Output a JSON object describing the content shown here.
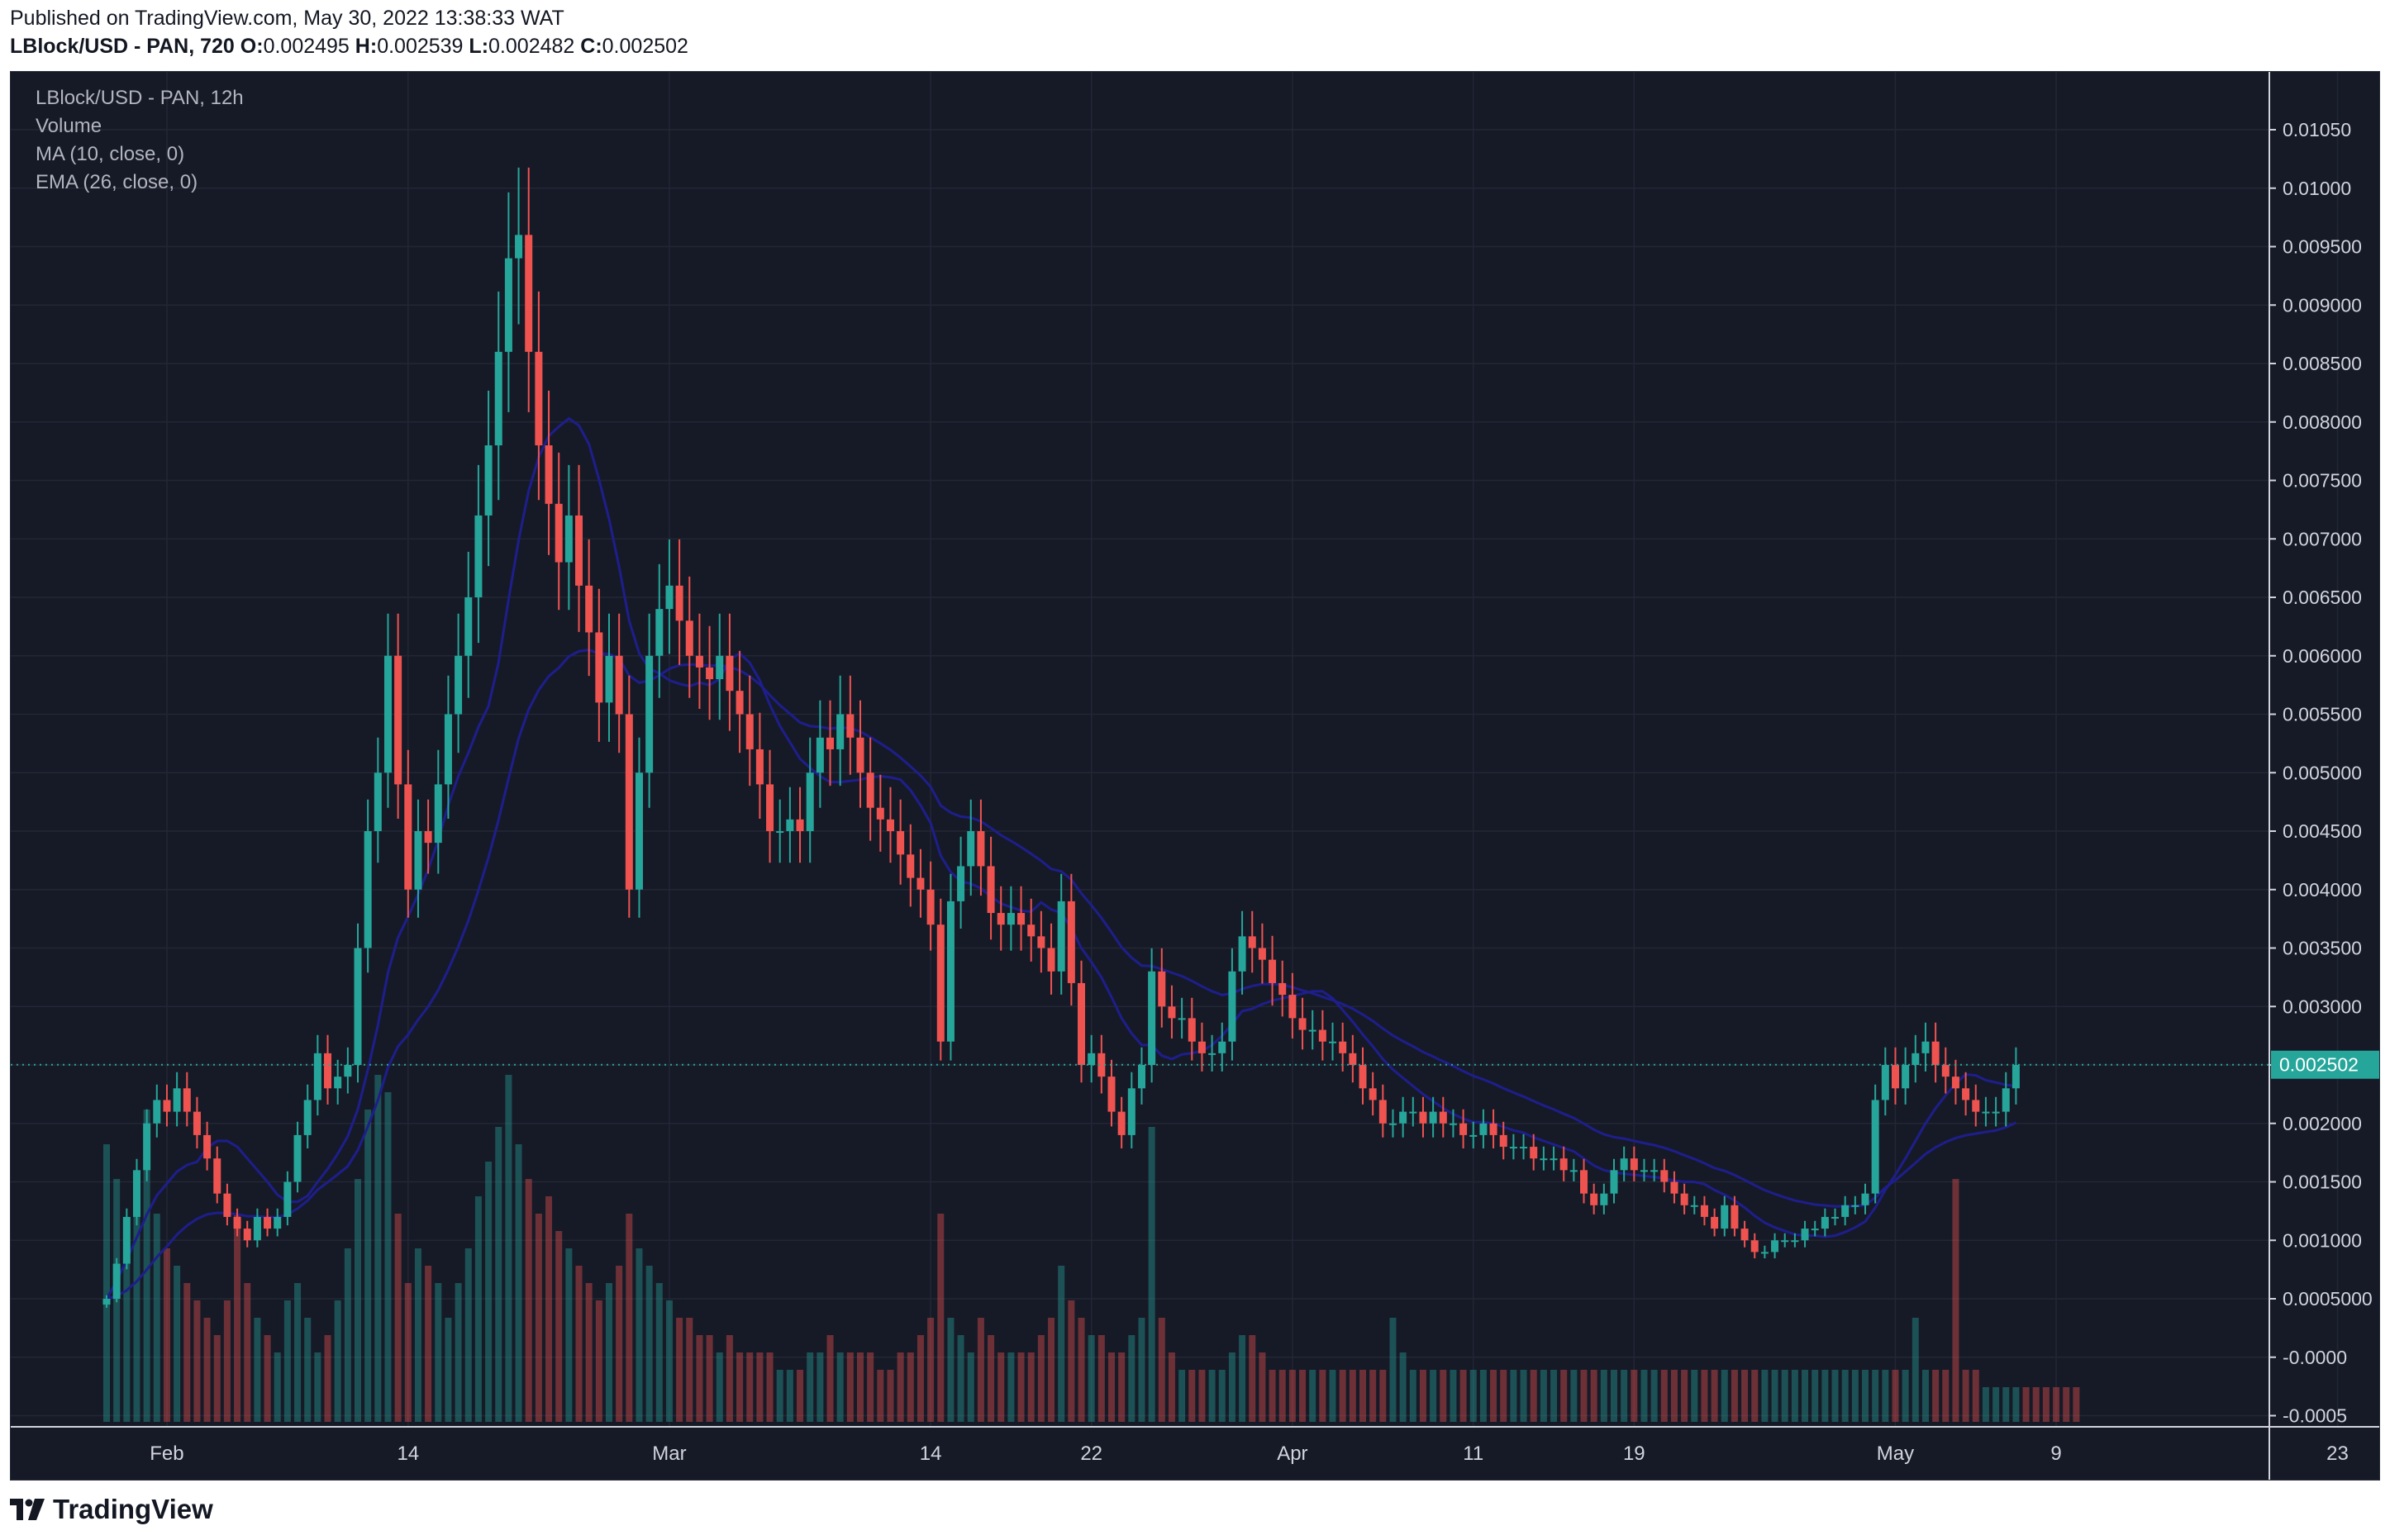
{
  "header": {
    "published": "Published on TradingView.com, May 30, 2022 13:38:33 WAT",
    "symbol_line": "LBlock/USD - PAN, 720",
    "o_label": "O:",
    "o_value": "0.002495",
    "h_label": "H:",
    "h_value": "0.002539",
    "l_label": "L:",
    "l_value": "0.002482",
    "c_label": "C:",
    "c_value": "0.002502"
  },
  "legend": {
    "symbol": "LBlock/USD - PAN, 12h",
    "volume": "Volume",
    "ma": "MA (10, close, 0)",
    "ema": "EMA (26, close, 0)"
  },
  "price_badge": "0.002502",
  "brand": "TradingView",
  "colors": {
    "background": "#161a27",
    "up": "#26a69a",
    "down": "#ef5350",
    "ma_line": "#1e1e8c",
    "badge": "#26a69a"
  },
  "chart_data": {
    "type": "candlestick",
    "title": "LBlock/USD - PAN, 12h",
    "ylim": [
      -0.0005,
      0.0107
    ],
    "y_ticks": [
      "0.01050",
      "0.01000",
      "0.009500",
      "0.009000",
      "0.008500",
      "0.008000",
      "0.007500",
      "0.007000",
      "0.006500",
      "0.006000",
      "0.005500",
      "0.005000",
      "0.004500",
      "0.004000",
      "0.003500",
      "0.003000",
      "0.002500",
      "0.002000",
      "0.001500",
      "0.001000",
      "0.0005000",
      "-0.0000",
      "-0.0005"
    ],
    "y_tick_values": [
      0.0105,
      0.01,
      0.0095,
      0.009,
      0.0085,
      0.008,
      0.0075,
      0.007,
      0.0065,
      0.006,
      0.0055,
      0.005,
      0.0045,
      0.004,
      0.0035,
      0.003,
      0.0025,
      0.002,
      0.0015,
      0.001,
      0.0005,
      0.0,
      -0.0005
    ],
    "x_ticks": [
      {
        "label": "Feb",
        "day": 3
      },
      {
        "label": "14",
        "day": 15
      },
      {
        "label": "Mar",
        "day": 28
      },
      {
        "label": "14",
        "day": 41
      },
      {
        "label": "22",
        "day": 49
      },
      {
        "label": "Apr",
        "day": 59
      },
      {
        "label": "11",
        "day": 68
      },
      {
        "label": "19",
        "day": 76
      },
      {
        "label": "May",
        "day": 89
      },
      {
        "label": "9",
        "day": 97
      },
      {
        "label": "23",
        "day": 111
      }
    ],
    "last_price": 0.002502,
    "closes": [
      0.0005,
      0.0008,
      0.0012,
      0.0016,
      0.002,
      0.0022,
      0.0021,
      0.0023,
      0.0021,
      0.0019,
      0.0017,
      0.0014,
      0.0012,
      0.0011,
      0.001,
      0.0012,
      0.0011,
      0.0012,
      0.0015,
      0.0019,
      0.0022,
      0.0026,
      0.0023,
      0.0024,
      0.0025,
      0.0035,
      0.0045,
      0.005,
      0.006,
      0.0049,
      0.004,
      0.0045,
      0.0044,
      0.0049,
      0.0055,
      0.006,
      0.0065,
      0.0072,
      0.0078,
      0.0086,
      0.0094,
      0.0096,
      0.0086,
      0.0078,
      0.0073,
      0.0068,
      0.0072,
      0.0066,
      0.0062,
      0.0056,
      0.006,
      0.0055,
      0.004,
      0.005,
      0.006,
      0.0064,
      0.0066,
      0.0063,
      0.006,
      0.0059,
      0.0058,
      0.006,
      0.0057,
      0.0055,
      0.0052,
      0.0049,
      0.0045,
      0.0045,
      0.0046,
      0.0045,
      0.005,
      0.0053,
      0.0052,
      0.0055,
      0.0053,
      0.005,
      0.0047,
      0.0046,
      0.0045,
      0.0043,
      0.0041,
      0.004,
      0.0037,
      0.0027,
      0.0039,
      0.0042,
      0.0045,
      0.0042,
      0.0038,
      0.0037,
      0.0038,
      0.0037,
      0.0036,
      0.0035,
      0.0033,
      0.0039,
      0.0032,
      0.0025,
      0.0026,
      0.0024,
      0.0021,
      0.0019,
      0.0023,
      0.0025,
      0.0033,
      0.003,
      0.0029,
      0.0029,
      0.0027,
      0.0026,
      0.0026,
      0.0027,
      0.0033,
      0.0036,
      0.0035,
      0.0034,
      0.0032,
      0.0031,
      0.0029,
      0.0028,
      0.0028,
      0.0027,
      0.0027,
      0.0026,
      0.0025,
      0.0023,
      0.0022,
      0.002,
      0.002,
      0.0021,
      0.0021,
      0.002,
      0.0021,
      0.002,
      0.002,
      0.0019,
      0.0019,
      0.002,
      0.0019,
      0.0018,
      0.0018,
      0.0018,
      0.0017,
      0.0017,
      0.0017,
      0.0016,
      0.0016,
      0.0014,
      0.0013,
      0.0014,
      0.0016,
      0.0017,
      0.0016,
      0.0016,
      0.0016,
      0.0015,
      0.0014,
      0.0013,
      0.0013,
      0.0012,
      0.0011,
      0.0013,
      0.0011,
      0.001,
      0.0009,
      0.0009,
      0.001,
      0.001,
      0.001,
      0.0011,
      0.0011,
      0.0012,
      0.0012,
      0.0013,
      0.0013,
      0.0014,
      0.0022,
      0.0025,
      0.0023,
      0.0025,
      0.0026,
      0.0027,
      0.0025,
      0.0024,
      0.0023,
      0.0022,
      0.0021,
      0.0021,
      0.0021,
      0.0023,
      0.0025
    ],
    "volumes": [
      800,
      700,
      500,
      650,
      900,
      600,
      500,
      450,
      400,
      350,
      300,
      250,
      350,
      600,
      400,
      300,
      250,
      200,
      350,
      400,
      300,
      200,
      250,
      350,
      500,
      700,
      900,
      1000,
      950,
      600,
      400,
      500,
      450,
      400,
      300,
      400,
      500,
      650,
      750,
      850,
      1000,
      800,
      700,
      600,
      650,
      550,
      500,
      450,
      400,
      350,
      400,
      450,
      600,
      500,
      450,
      400,
      350,
      300,
      300,
      250,
      250,
      200,
      250,
      200,
      200,
      200,
      200,
      150,
      150,
      150,
      200,
      200,
      250,
      200,
      200,
      200,
      200,
      150,
      150,
      200,
      200,
      250,
      300,
      600,
      300,
      250,
      200,
      300,
      250,
      200,
      200,
      200,
      200,
      250,
      300,
      450,
      350,
      300,
      250,
      250,
      200,
      200,
      250,
      300,
      850,
      300,
      200,
      150,
      150,
      150,
      150,
      150,
      200,
      250,
      250,
      200,
      150,
      150,
      150,
      150,
      150,
      150,
      150,
      150,
      150,
      150,
      150,
      150,
      300,
      200,
      150,
      150,
      150,
      150,
      150,
      150,
      150,
      150,
      150,
      150,
      150,
      150,
      150,
      150,
      150,
      150,
      150,
      150,
      150,
      150,
      150,
      150,
      150,
      150,
      150,
      150,
      150,
      150,
      150,
      150,
      150,
      150,
      150,
      150,
      150,
      150,
      150,
      150,
      150,
      150,
      150,
      150,
      150,
      150,
      150,
      150,
      150,
      150,
      150,
      150,
      300,
      150,
      150,
      150,
      700,
      150,
      150,
      100,
      100,
      100,
      100,
      100,
      100,
      100,
      100,
      100,
      100
    ],
    "series": [
      {
        "name": "MA (10, close, 0)"
      },
      {
        "name": "EMA (26, close, 0)"
      }
    ]
  }
}
